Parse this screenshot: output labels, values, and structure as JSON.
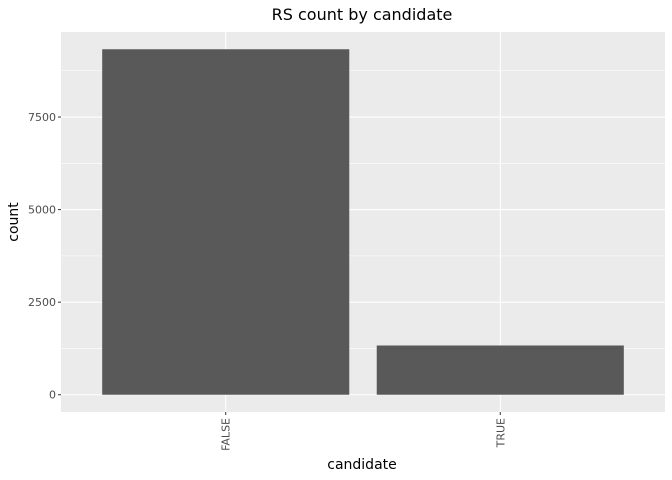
{
  "chart_data": {
    "type": "bar",
    "title": "RS count by candidate",
    "xlabel": "candidate",
    "ylabel": "count",
    "categories": [
      "FALSE",
      "TRUE"
    ],
    "values": [
      9330,
      1330
    ],
    "ylim": [
      -466,
      9796
    ],
    "yticks": [
      0,
      2500,
      5000,
      7500
    ],
    "ytick_labels": [
      "0",
      "2500",
      "5000",
      "7500"
    ],
    "grid": true,
    "legend": "none",
    "colors": {
      "bar": "#595959",
      "panel": "#ebebeb",
      "grid": "#ffffff"
    }
  }
}
